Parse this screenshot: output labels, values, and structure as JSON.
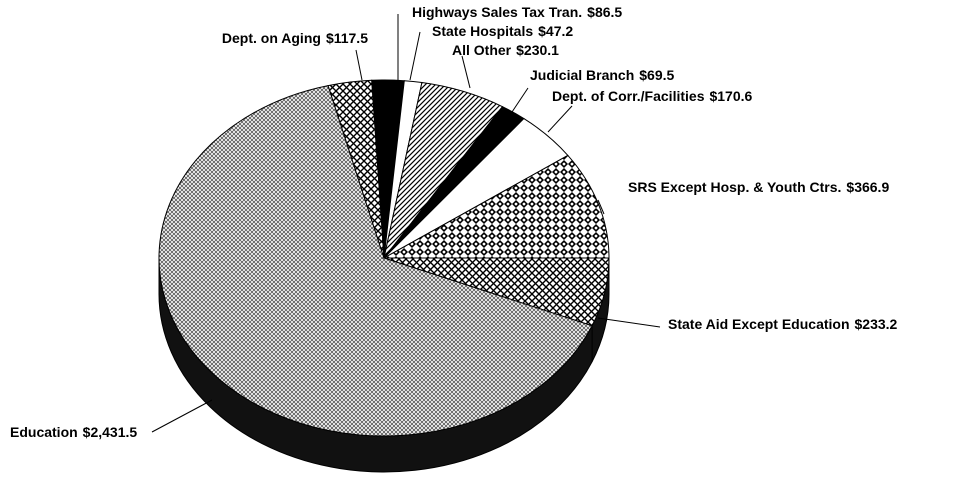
{
  "chart_data": {
    "type": "pie",
    "categories": [
      "State Aid Except Education",
      "Education",
      "Dept. on Aging",
      "Highways Sales Tax Tran.",
      "State Hospitals",
      "All Other",
      "Judicial Branch",
      "Dept. of Corr./Facilities",
      "SRS Except Hosp. & Youth Ctrs."
    ],
    "values": [
      233.2,
      2431.5,
      117.5,
      86.5,
      47.2,
      230.1,
      69.5,
      170.6,
      366.9
    ],
    "value_labels": [
      "$233.2",
      "$2,431.5",
      "$117.5",
      "$86.5",
      "$47.2",
      "$230.1",
      "$69.5",
      "$170.6",
      "$366.9"
    ]
  }
}
